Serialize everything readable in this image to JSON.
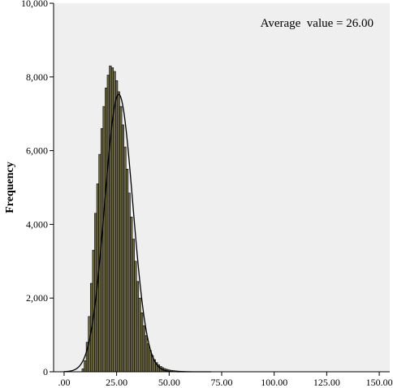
{
  "chart_data": {
    "type": "bar",
    "subtype": "histogram",
    "title": "",
    "xlabel": "",
    "ylabel": "Frequency",
    "annotation": "Average  value = 26.00",
    "xlim": [
      -5,
      155
    ],
    "ylim": [
      0,
      10000
    ],
    "x_ticks": [
      0,
      25,
      50,
      75,
      100,
      125,
      150
    ],
    "x_tick_labels": [
      ".00",
      "25.00",
      "50.00",
      "75.00",
      "100.00",
      "125.00",
      "150.00"
    ],
    "y_ticks": [
      0,
      2000,
      4000,
      6000,
      8000,
      10000
    ],
    "y_tick_labels": [
      "0",
      "2,000",
      "4,000",
      "6,000",
      "8,000",
      "10,000"
    ],
    "bin_width": 1,
    "bins": [
      {
        "x": 9,
        "value": 80
      },
      {
        "x": 10,
        "value": 300
      },
      {
        "x": 11,
        "value": 800
      },
      {
        "x": 12,
        "value": 1500
      },
      {
        "x": 13,
        "value": 2400
      },
      {
        "x": 14,
        "value": 3300
      },
      {
        "x": 15,
        "value": 4300
      },
      {
        "x": 16,
        "value": 5100
      },
      {
        "x": 17,
        "value": 5900
      },
      {
        "x": 18,
        "value": 6600
      },
      {
        "x": 19,
        "value": 7200
      },
      {
        "x": 20,
        "value": 7700
      },
      {
        "x": 21,
        "value": 8050
      },
      {
        "x": 22,
        "value": 8300
      },
      {
        "x": 23,
        "value": 8250
      },
      {
        "x": 24,
        "value": 8150
      },
      {
        "x": 25,
        "value": 7900
      },
      {
        "x": 26,
        "value": 7600
      },
      {
        "x": 27,
        "value": 7200
      },
      {
        "x": 28,
        "value": 6700
      },
      {
        "x": 29,
        "value": 6100
      },
      {
        "x": 30,
        "value": 5500
      },
      {
        "x": 31,
        "value": 4850
      },
      {
        "x": 32,
        "value": 4200
      },
      {
        "x": 33,
        "value": 3600
      },
      {
        "x": 34,
        "value": 3000
      },
      {
        "x": 35,
        "value": 2450
      },
      {
        "x": 36,
        "value": 2000
      },
      {
        "x": 37,
        "value": 1600
      },
      {
        "x": 38,
        "value": 1250
      },
      {
        "x": 39,
        "value": 980
      },
      {
        "x": 40,
        "value": 760
      },
      {
        "x": 41,
        "value": 580
      },
      {
        "x": 42,
        "value": 440
      },
      {
        "x": 43,
        "value": 330
      },
      {
        "x": 44,
        "value": 250
      },
      {
        "x": 45,
        "value": 190
      },
      {
        "x": 46,
        "value": 145
      },
      {
        "x": 47,
        "value": 110
      },
      {
        "x": 48,
        "value": 85
      },
      {
        "x": 49,
        "value": 65
      },
      {
        "x": 50,
        "value": 50
      },
      {
        "x": 51,
        "value": 40
      },
      {
        "x": 52,
        "value": 32
      },
      {
        "x": 53,
        "value": 26
      },
      {
        "x": 54,
        "value": 21
      },
      {
        "x": 55,
        "value": 17
      },
      {
        "x": 56,
        "value": 14
      },
      {
        "x": 57,
        "value": 11
      },
      {
        "x": 58,
        "value": 9
      },
      {
        "x": 59,
        "value": 7
      },
      {
        "x": 60,
        "value": 6
      },
      {
        "x": 61,
        "value": 5
      },
      {
        "x": 62,
        "value": 4
      },
      {
        "x": 63,
        "value": 3
      },
      {
        "x": 64,
        "value": 2
      },
      {
        "x": 65,
        "value": 2
      },
      {
        "x": 66,
        "value": 1
      }
    ],
    "normal_curve": {
      "mean": 26.0,
      "sd": 6.7,
      "peak": 7530
    },
    "grid": false,
    "legend": "none",
    "colors": {
      "background": "#EFEFEF",
      "bar_fill": "#6E6A47",
      "bar_edge": "#000000",
      "curve": "#000000"
    }
  }
}
